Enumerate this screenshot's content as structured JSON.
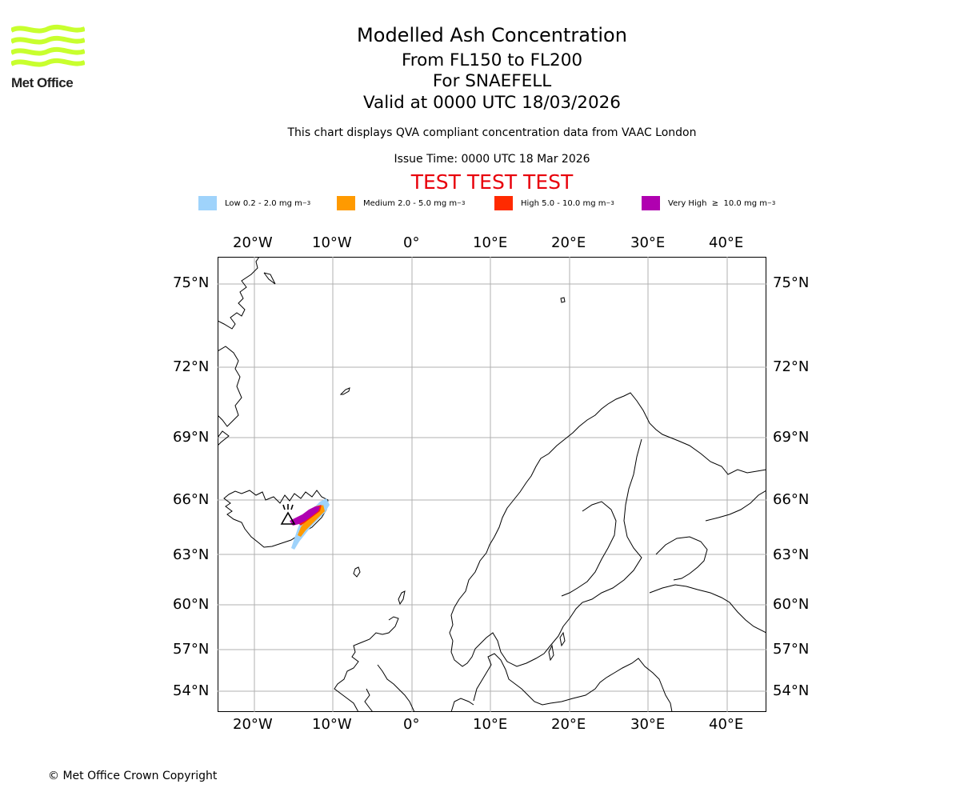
{
  "logo": {
    "text": "Met Office",
    "wave_color": "#c8ff2e"
  },
  "title": {
    "main": "Modelled Ash Concentration",
    "levels": "From FL150 to FL200",
    "volcano": "For SNAEFELL",
    "valid": "Valid at 0000 UTC 18/03/2026",
    "description": "This chart displays QVA compliant concentration data from VAAC London",
    "issue_time": "Issue Time: 0000 UTC 18 Mar 2026",
    "test_banner": "TEST TEST TEST"
  },
  "legend": [
    {
      "label": "Low 0.2 - 2.0 mg m",
      "unit_exp": "−3",
      "color": "#9fd3fb"
    },
    {
      "label": "Medium 2.0 - 5.0 mg m",
      "unit_exp": "−3",
      "color": "#ff9a00"
    },
    {
      "label": "High 5.0 - 10.0 mg m",
      "unit_exp": "−3",
      "color": "#ff2a00"
    },
    {
      "label": "Very High  ≥  10.0 mg m",
      "unit_exp": "−3",
      "color": "#b000b0"
    }
  ],
  "axes": {
    "lon_labels": [
      "20°W",
      "10°W",
      "0°",
      "10°E",
      "20°E",
      "30°E",
      "40°E"
    ],
    "lat_labels": [
      "75°N",
      "72°N",
      "69°N",
      "66°N",
      "63°N",
      "60°N",
      "57°N",
      "54°N"
    ]
  },
  "copyright": "© Met Office Crown Copyright"
}
